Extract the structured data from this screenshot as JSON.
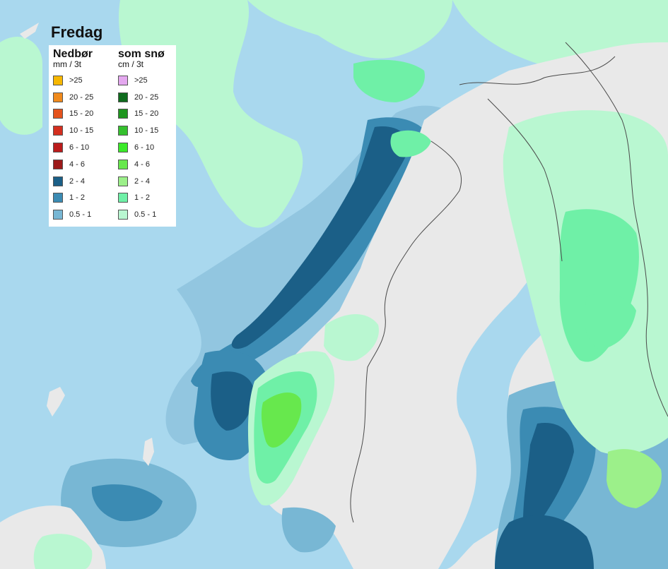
{
  "title": "Fredag",
  "legend": {
    "rain": {
      "heading": "Nedbør",
      "unit": "mm / 3t",
      "items": [
        {
          "label": ">25",
          "color": "#f7b700"
        },
        {
          "label": "20 - 25",
          "color": "#f08a1c"
        },
        {
          "label": "15 - 20",
          "color": "#e4531d"
        },
        {
          "label": "10 - 15",
          "color": "#d42f1f"
        },
        {
          "label": "6 - 10",
          "color": "#bb1c1c"
        },
        {
          "label": "4 - 6",
          "color": "#9c1a1a"
        },
        {
          "label": "2 - 4",
          "color": "#1b5f87"
        },
        {
          "label": "1 - 2",
          "color": "#3b8bb3"
        },
        {
          "label": "0.5 - 1",
          "color": "#78b7d4"
        }
      ]
    },
    "snow": {
      "heading": "som snø",
      "unit": "cm / 3t",
      "items": [
        {
          "label": ">25",
          "color": "#e4a8ef"
        },
        {
          "label": "20 - 25",
          "color": "#0f6b1d"
        },
        {
          "label": "15 - 20",
          "color": "#1f951f"
        },
        {
          "label": "10 - 15",
          "color": "#35c02e"
        },
        {
          "label": "6 - 10",
          "color": "#3bea29"
        },
        {
          "label": "4 - 6",
          "color": "#67e84d"
        },
        {
          "label": "2 - 4",
          "color": "#9cf08a"
        },
        {
          "label": "1 - 2",
          "color": "#6ff0a7"
        },
        {
          "label": "0.5 - 1",
          "color": "#b9f7d1"
        }
      ]
    }
  },
  "colors": {
    "sea": "#a9d8ee",
    "land": "#e9e9e9",
    "border": "#4a4a4a",
    "rain_light": "#78b7d4",
    "rain_mid": "#3b8bb3",
    "rain_heavy": "#1b5f87",
    "snow_light": "#b9f7d1",
    "snow_mid": "#6ff0a7",
    "snow_heavy": "#67e84d"
  }
}
